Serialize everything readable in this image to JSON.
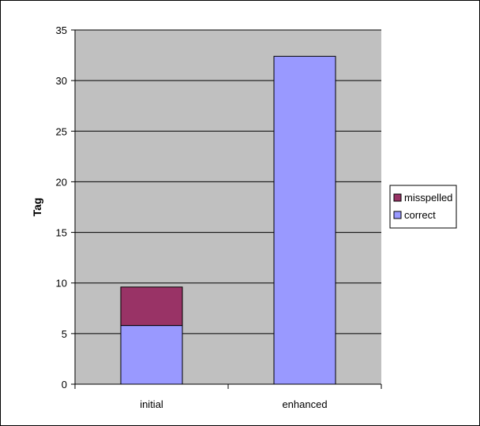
{
  "chart_data": {
    "type": "bar",
    "stacked": true,
    "categories": [
      "initial",
      "enhanced"
    ],
    "series": [
      {
        "name": "correct",
        "values": [
          5.8,
          32.4
        ],
        "color": "#9999ff"
      },
      {
        "name": "misspelled",
        "values": [
          3.8,
          0
        ],
        "color": "#993366"
      }
    ],
    "ylabel": "Tag",
    "xlabel": "",
    "title": "",
    "ylim": [
      0,
      35
    ],
    "yticks": [
      0,
      5,
      10,
      15,
      20,
      25,
      30,
      35
    ],
    "ytick_labels": [
      "0",
      "5",
      "10",
      "15",
      "20",
      "25",
      "30",
      "35"
    ],
    "grid": true,
    "plot_background": "#c0c0c0",
    "legend_position": "right",
    "legend_entries": [
      "misspelled",
      "correct"
    ]
  }
}
